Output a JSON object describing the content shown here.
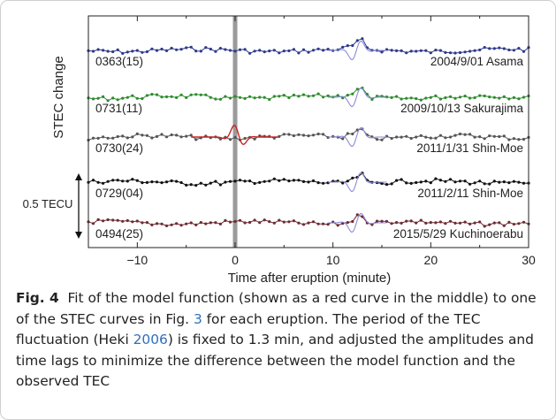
{
  "chart_data": {
    "type": "line",
    "title": "",
    "xlabel": "Time after eruption (minute)",
    "ylabel": "STEC change",
    "xlim": [
      -15,
      30
    ],
    "xticks": [
      -10,
      0,
      10,
      20,
      30
    ],
    "scale_bar_label": "0.5 TECU",
    "eruption_marker_x": 0,
    "series": [
      {
        "id": "0363(15)",
        "name": "2004/9/01 Asama",
        "color": "#2e3a8c"
      },
      {
        "id": "0731(11)",
        "name": "2009/10/13 Sakurajima",
        "color": "#2e8b2e"
      },
      {
        "id": "0730(24)",
        "name": "2011/1/31 Shin-Moe",
        "color": "#555555"
      },
      {
        "id": "0729(04)",
        "name": "2011/2/11 Shin-Moe",
        "color": "#111111"
      },
      {
        "id": "0494(25)",
        "name": "2015/5/29 Kuchinoerabu",
        "color": "#6e2b33"
      }
    ],
    "model_curve_color": "#cc2222",
    "fit_curve_color": "#8a8ad8"
  },
  "caption": {
    "label": "Fig. 4",
    "p1": "Fit of the model function (shown as a red curve in the middle) to one of the STEC curves in Fig. ",
    "ref1": "3",
    "p2": " for each eruption. The period of the TEC fluctuation (Heki ",
    "ref2": "2006",
    "p3": ") is fixed to 1.3 min, and adjusted the amplitudes and time lags to minimize the difference between the model function and the observed TEC"
  }
}
